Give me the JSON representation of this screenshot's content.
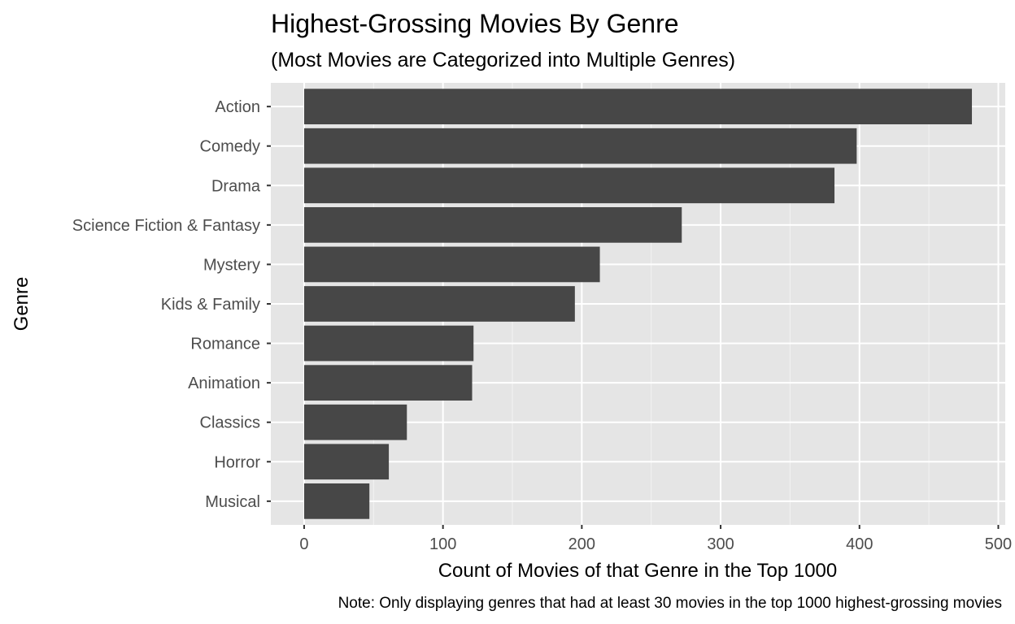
{
  "chart_data": {
    "type": "bar",
    "orientation": "horizontal",
    "title": "Highest-Grossing Movies By Genre",
    "subtitle": "(Most Movies are Categorized into Multiple Genres)",
    "xlabel": "Count of Movies of that Genre in the Top 1000",
    "ylabel": "Genre",
    "caption": "Note: Only displaying genres that had at least 30 movies in the top 1000 highest-grossing movies",
    "categories": [
      "Action",
      "Comedy",
      "Drama",
      "Science Fiction & Fantasy",
      "Mystery",
      "Kids & Family",
      "Romance",
      "Animation",
      "Classics",
      "Horror",
      "Musical"
    ],
    "values": [
      481,
      398,
      382,
      272,
      213,
      195,
      122,
      121,
      74,
      61,
      47
    ],
    "xlim": [
      -24,
      505
    ],
    "xticks": [
      0,
      100,
      200,
      300,
      400,
      500
    ],
    "xtick_labels": [
      "0",
      "100",
      "200",
      "300",
      "400",
      "500"
    ],
    "grid": true,
    "colors": {
      "bar": "#474747",
      "panel": "#e5e5e5",
      "grid_major": "#ffffff",
      "grid_minor": "#f2f2f2",
      "tick_text": "#4d4d4d",
      "text": "#000000"
    }
  }
}
